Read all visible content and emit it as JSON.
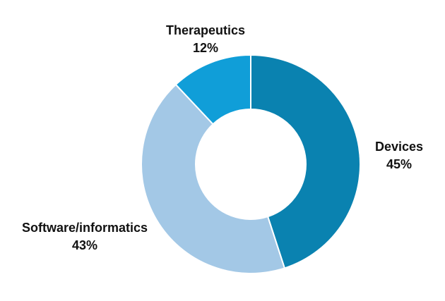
{
  "chart_data": {
    "type": "pie",
    "variant": "donut",
    "slices": [
      {
        "label": "Devices",
        "value": 45,
        "value_label": "45%",
        "color": "#0a82b0"
      },
      {
        "label": "Software/informatics",
        "value": 43,
        "value_label": "43%",
        "color": "#a3c8e6"
      },
      {
        "label": "Therapeutics",
        "value": 12,
        "value_label": "12%",
        "color": "#109ed8"
      }
    ],
    "start": "12 o'clock",
    "direction": "clockwise"
  }
}
